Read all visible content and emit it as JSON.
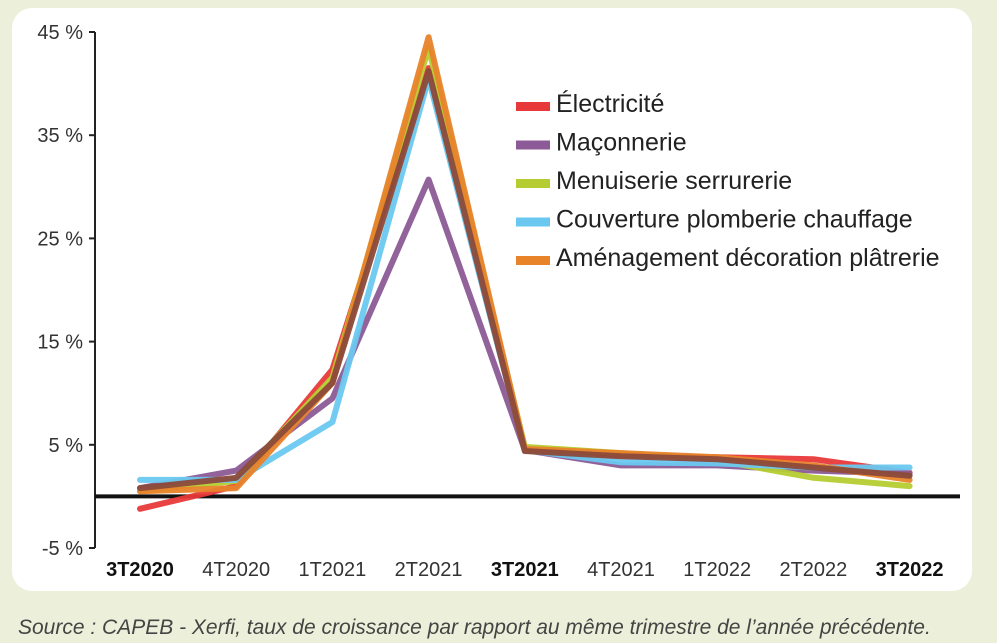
{
  "chart_data": {
    "type": "line",
    "x": [
      "3T2020",
      "4T2020",
      "1T2021",
      "2T2021",
      "3T2021",
      "4T2021",
      "1T2022",
      "2T2022",
      "3T2022"
    ],
    "x_bold": [
      "3T2020",
      "3T2021",
      "3T2022"
    ],
    "ylim": [
      -5,
      45
    ],
    "yticks": [
      -5,
      5,
      15,
      25,
      35,
      45
    ],
    "ytick_labels": [
      "-5 %",
      "5 %",
      "15 %",
      "25 %",
      "35 %",
      "45 %"
    ],
    "zero_line": true,
    "grid": false,
    "legend_placement": "top-right",
    "series": [
      {
        "name": "Électricité",
        "color": "#e8393a",
        "values": [
          -1.2,
          1.0,
          12.3,
          41.5,
          4.5,
          4.0,
          3.8,
          3.6,
          2.3
        ]
      },
      {
        "name": "Maçonnerie",
        "color": "#8c5a96",
        "values": [
          0.8,
          2.5,
          9.5,
          30.7,
          4.5,
          3.0,
          3.0,
          2.5,
          2.2
        ]
      },
      {
        "name": "Menuiserie serrurerie",
        "color": "#b5cd32",
        "values": [
          0.5,
          1.5,
          11.5,
          43.5,
          4.8,
          4.2,
          3.5,
          1.8,
          1.0
        ]
      },
      {
        "name": "Couverture plomberie chauffage",
        "color": "#6ac8f0",
        "values": [
          1.6,
          1.6,
          7.2,
          40.5,
          4.5,
          3.3,
          3.2,
          2.8,
          2.8
        ]
      },
      {
        "name": "Aménagement décoration plâtrerie",
        "color": "#e8832a",
        "values": [
          0.5,
          0.8,
          11.0,
          44.5,
          4.6,
          4.2,
          3.8,
          3.0,
          1.6
        ]
      },
      {
        "color": "#8b4a3a",
        "values": [
          0.8,
          1.8,
          11.0,
          41.2,
          4.4,
          3.9,
          3.6,
          2.8,
          2.0
        ]
      }
    ]
  },
  "source_text": "Source : CAPEB - Xerfi, taux de croissance par rapport au même trimestre de l’année précédente."
}
